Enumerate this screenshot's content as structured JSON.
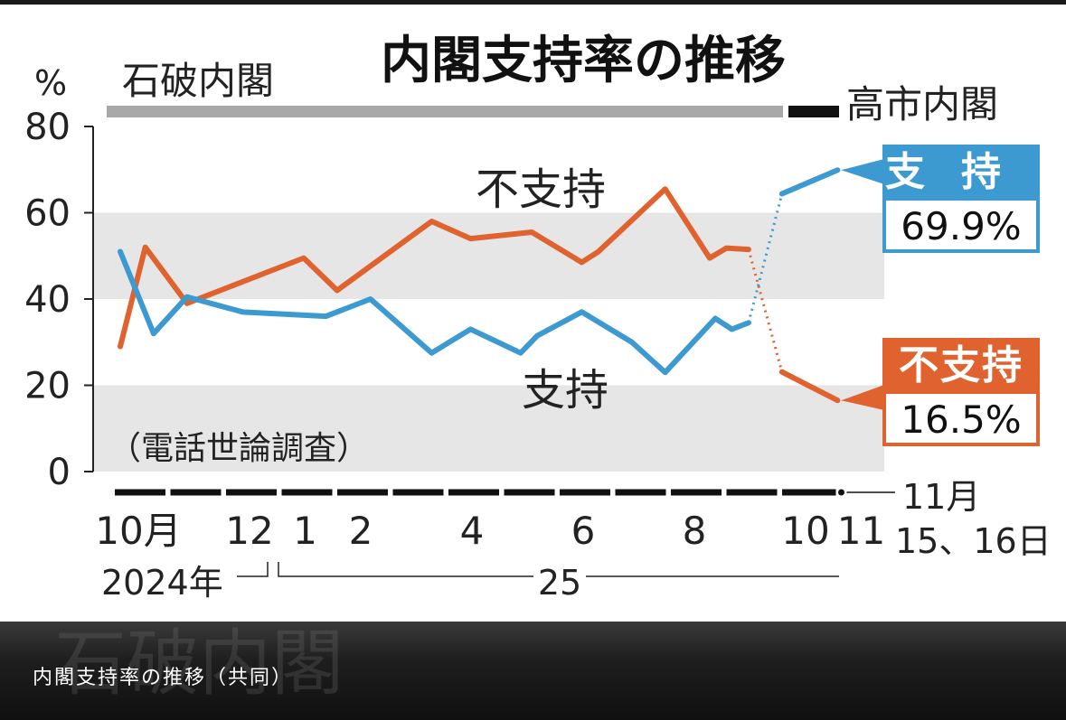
{
  "caption": "内閣支持率の推移（共同）",
  "chart_data": {
    "type": "line",
    "title": "内閣支持率の推移",
    "ylabel": "%",
    "ylim": [
      0,
      80
    ],
    "yticks": [
      0,
      20,
      40,
      60,
      80
    ],
    "cabinet_labels": {
      "ishiba": "石破内閣",
      "takaichi": "高市内閣"
    },
    "survey_note": "（電話世論調査）",
    "x_tick_labels": [
      {
        "label": "10月",
        "x": 0
      },
      {
        "label": "12",
        "x": 2
      },
      {
        "label": "1",
        "x": 3
      },
      {
        "label": "2",
        "x": 4
      },
      {
        "label": "4",
        "x": 6
      },
      {
        "label": "6",
        "x": 8
      },
      {
        "label": "8",
        "x": 10
      },
      {
        "label": "10",
        "x": 12
      },
      {
        "label": "11",
        "x": 13
      }
    ],
    "year_labels": {
      "y2024": "2024年",
      "y25": "25"
    },
    "latest_date_label": [
      "11月",
      "15、16日"
    ],
    "series": [
      {
        "name": "不支持",
        "color": "#e0622f",
        "points": [
          [
            0,
            29
          ],
          [
            0.45,
            52
          ],
          [
            1.2,
            39
          ],
          [
            3.3,
            49.5
          ],
          [
            3.9,
            42
          ],
          [
            5.6,
            58
          ],
          [
            6.3,
            54
          ],
          [
            7.4,
            55.5
          ],
          [
            8.3,
            48.5
          ],
          [
            8.6,
            51
          ],
          [
            9.8,
            65.5
          ],
          [
            10.6,
            49.5
          ],
          [
            10.9,
            51.8
          ],
          [
            11.3,
            51.5
          ],
          [
            11.9,
            23.1
          ],
          [
            12.9,
            16.5
          ]
        ],
        "dotted_from_index": 13,
        "inline_label": "不支持",
        "end_label": "不支持",
        "end_value": "16.5%"
      },
      {
        "name": "支持",
        "color": "#3d9ad1",
        "points": [
          [
            0,
            51
          ],
          [
            0.6,
            32
          ],
          [
            1.2,
            40.5
          ],
          [
            2.2,
            37
          ],
          [
            3.7,
            36
          ],
          [
            4.5,
            40
          ],
          [
            5.6,
            27.5
          ],
          [
            6.3,
            33
          ],
          [
            7.2,
            27.5
          ],
          [
            7.5,
            31.5
          ],
          [
            8.3,
            37
          ],
          [
            9.2,
            30
          ],
          [
            9.8,
            23
          ],
          [
            10.7,
            35.5
          ],
          [
            11.0,
            33
          ],
          [
            11.3,
            34.5
          ],
          [
            11.9,
            64.4
          ],
          [
            12.9,
            69.9
          ]
        ],
        "dotted_from_index": 15,
        "inline_label": "支持",
        "end_label": "支持",
        "end_value": "69.9%"
      }
    ]
  }
}
